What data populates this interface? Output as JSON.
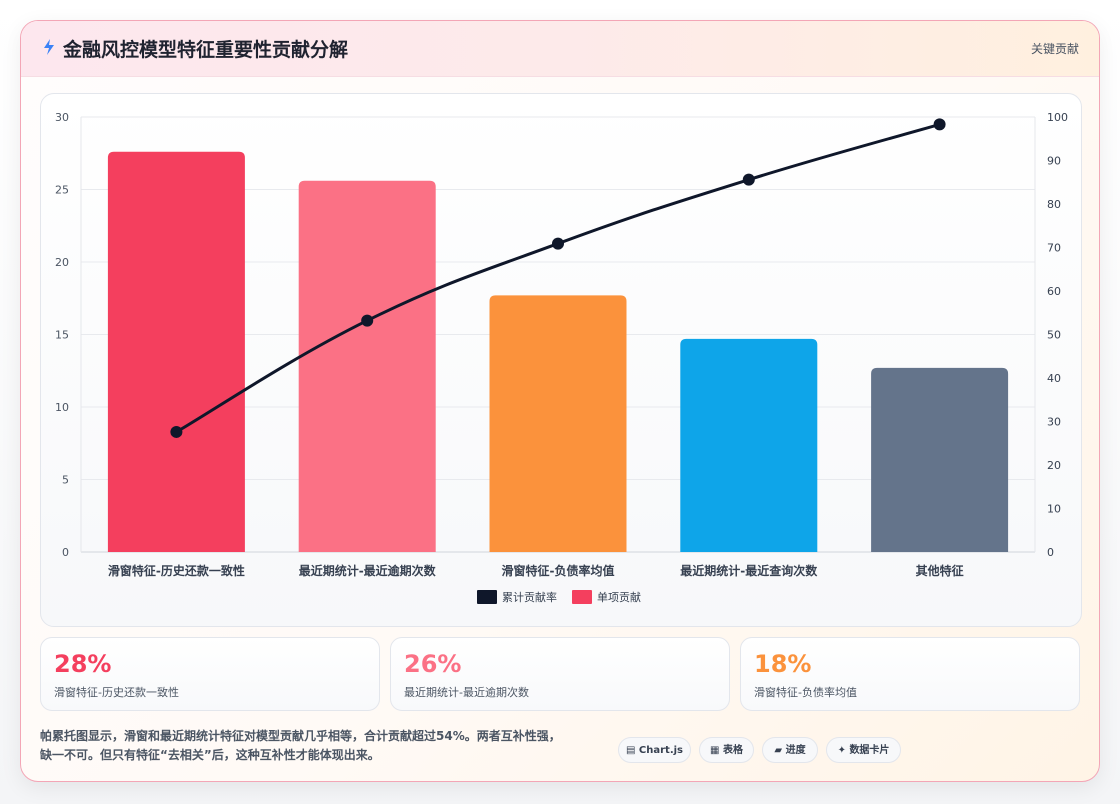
{
  "header": {
    "title": "金融风控模型特征重要性贡献分解",
    "tag": "关键贡献"
  },
  "chart_data": {
    "type": "bar",
    "categories": [
      "滑窗特征-历史还款一致性",
      "最近期统计-最近逾期次数",
      "滑窗特征-负债率均值",
      "最近期统计-最近查询次数",
      "其他特征"
    ],
    "series": [
      {
        "name": "单项贡献",
        "type": "bar",
        "axis": "left",
        "values": [
          27.6,
          25.6,
          17.7,
          14.7,
          12.7
        ],
        "colors": [
          "#f43f5e",
          "#fb7185",
          "#fb923c",
          "#0ea5e9",
          "#64748b"
        ]
      },
      {
        "name": "累计贡献率",
        "type": "line",
        "axis": "right",
        "values": [
          27.6,
          53.2,
          70.9,
          85.6,
          98.3
        ],
        "color": "#0f172a"
      }
    ],
    "ylim": [
      0,
      30
    ],
    "yticks": [
      0,
      5,
      10,
      15,
      20,
      25,
      30
    ],
    "y2lim": [
      0,
      100
    ],
    "y2ticks": [
      0,
      10,
      20,
      30,
      40,
      50,
      60,
      70,
      80,
      90,
      100
    ],
    "legend": [
      "累计贡献率",
      "单项贡献"
    ],
    "legend_position": "bottom",
    "grid": true
  },
  "stats": [
    {
      "value": "28%",
      "label": "滑窗特征-历史还款一致性",
      "color": "#f43f5e"
    },
    {
      "value": "26%",
      "label": "最近期统计-最近逾期次数",
      "color": "#fb7185"
    },
    {
      "value": "18%",
      "label": "滑窗特征-负债率均值",
      "color": "#fb923c"
    }
  ],
  "note": {
    "line1": "帕累托图显示，滑窗和最近期统计特征对模型贡献几乎相等，合计贡献超过54%。两者互补性强，",
    "line2": "缺一不可。但只有特征“去相关”后，这种互补性才能体现出来。"
  },
  "chips": [
    {
      "icon": "chart-icon",
      "label": "Chart.js"
    },
    {
      "icon": "table-icon",
      "label": "表格"
    },
    {
      "icon": "progress-icon",
      "label": "进度"
    },
    {
      "icon": "card-icon",
      "label": "数据卡片"
    }
  ]
}
